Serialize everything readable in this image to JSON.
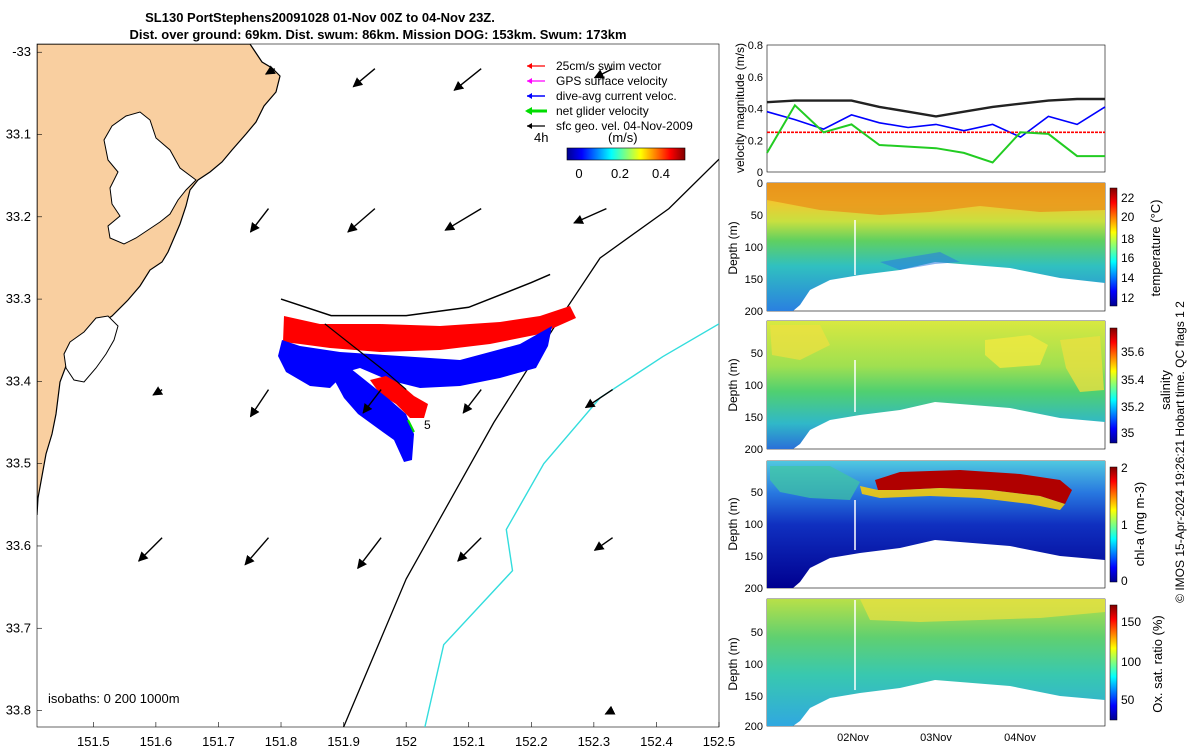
{
  "title": {
    "line1": "SL130 PortStephens20091028 01-Nov 00Z to 04-Nov 23Z.",
    "line2": "Dist. over ground: 69km. Dist. swum: 86km. Mission DOG: 153km. Swum: 173km"
  },
  "colors": {
    "land": "#f9cfa0",
    "swim_vector": "#ff0000",
    "gps_surface": "#ff00ff",
    "dive_avg": "#0000ff",
    "net_glider": "#00dd00",
    "sfc_geo": "#000000",
    "isobath_200": "#000000",
    "isobath_1000": "#33dddd"
  },
  "chart_data": [
    {
      "id": "map",
      "type": "map",
      "xticks": [
        "151.5",
        "151.6",
        "151.7",
        "151.8",
        "151.9",
        "152",
        "152.1",
        "152.2",
        "152.3",
        "152.4",
        "152.5"
      ],
      "yticks": [
        "-33",
        "33.1",
        "33.2",
        "33.3",
        "33.4",
        "33.5",
        "33.6",
        "33.7",
        "33.8"
      ],
      "xlim": [
        151.41,
        152.5
      ],
      "ylim": [
        -33.82,
        -32.99
      ],
      "legend": [
        {
          "label": "25cm/s swim vector",
          "color": "#ff0000"
        },
        {
          "label": "GPS surface velocity",
          "color": "#ff00ff"
        },
        {
          "label": "dive-avg current veloc.",
          "color": "#0000ff"
        },
        {
          "label": "net glider velocity",
          "color": "#00dd00"
        },
        {
          "label": "sfc geo. vel. 04-Nov-2009",
          "color": "#000000"
        }
      ],
      "time_label": "4h",
      "colorbar": {
        "label": "(m/s)",
        "ticks": [
          "0",
          "0.2",
          "0.4"
        ],
        "range": [
          0,
          0.5
        ]
      },
      "isobaths_text": "isobaths: 0   200  1000m",
      "end_label": "5",
      "geo_velocity_arrows": [
        {
          "lon": 151.79,
          "lat": -33.02,
          "u": -0.05,
          "v": -0.03
        },
        {
          "lon": 151.95,
          "lat": -33.02,
          "u": -0.12,
          "v": -0.1
        },
        {
          "lon": 152.12,
          "lat": -33.02,
          "u": -0.15,
          "v": -0.12
        },
        {
          "lon": 152.33,
          "lat": -33.02,
          "u": -0.1,
          "v": -0.05
        },
        {
          "lon": 151.78,
          "lat": -33.19,
          "u": -0.1,
          "v": -0.13
        },
        {
          "lon": 151.95,
          "lat": -33.19,
          "u": -0.15,
          "v": -0.13
        },
        {
          "lon": 152.12,
          "lat": -33.19,
          "u": -0.2,
          "v": -0.12
        },
        {
          "lon": 152.32,
          "lat": -33.19,
          "u": -0.18,
          "v": -0.08
        },
        {
          "lon": 151.61,
          "lat": -33.41,
          "u": -0.05,
          "v": -0.03
        },
        {
          "lon": 151.78,
          "lat": -33.41,
          "u": -0.1,
          "v": -0.15
        },
        {
          "lon": 151.96,
          "lat": -33.41,
          "u": -0.1,
          "v": -0.13
        },
        {
          "lon": 152.12,
          "lat": -33.41,
          "u": -0.1,
          "v": -0.13
        },
        {
          "lon": 152.33,
          "lat": -33.41,
          "u": -0.15,
          "v": -0.1
        },
        {
          "lon": 151.61,
          "lat": -33.59,
          "u": -0.13,
          "v": -0.13
        },
        {
          "lon": 151.78,
          "lat": -33.59,
          "u": -0.13,
          "v": -0.15
        },
        {
          "lon": 151.96,
          "lat": -33.59,
          "u": -0.13,
          "v": -0.17
        },
        {
          "lon": 152.12,
          "lat": -33.59,
          "u": -0.13,
          "v": -0.13
        },
        {
          "lon": 152.33,
          "lat": -33.59,
          "u": -0.1,
          "v": -0.07
        },
        {
          "lon": 152.33,
          "lat": -33.8,
          "u": -0.04,
          "v": -0.02
        }
      ],
      "glider_track": [
        {
          "lon": 151.8,
          "lat": -33.3
        },
        {
          "lon": 151.88,
          "lat": -33.32
        },
        {
          "lon": 152.0,
          "lat": -33.32
        },
        {
          "lon": 152.1,
          "lat": -33.31
        },
        {
          "lon": 152.2,
          "lat": -33.28
        },
        {
          "lon": 152.23,
          "lat": -33.27
        }
      ],
      "glider_track_south": [
        {
          "lon": 151.87,
          "lat": -33.33
        },
        {
          "lon": 151.92,
          "lat": -33.36
        },
        {
          "lon": 151.97,
          "lat": -33.39
        },
        {
          "lon": 152.0,
          "lat": -33.41
        }
      ],
      "isobath_200m": [
        {
          "lon": 152.5,
          "lat": -33.13
        },
        {
          "lon": 152.42,
          "lat": -33.19
        },
        {
          "lon": 152.31,
          "lat": -33.25
        },
        {
          "lon": 152.24,
          "lat": -33.33
        },
        {
          "lon": 152.14,
          "lat": -33.45
        },
        {
          "lon": 152.0,
          "lat": -33.64
        },
        {
          "lon": 151.9,
          "lat": -33.82
        }
      ],
      "isobath_1000m": [
        {
          "lon": 152.5,
          "lat": -33.33
        },
        {
          "lon": 152.41,
          "lat": -33.37
        },
        {
          "lon": 152.31,
          "lat": -33.42
        },
        {
          "lon": 152.22,
          "lat": -33.5
        },
        {
          "lon": 152.16,
          "lat": -33.58
        },
        {
          "lon": 152.17,
          "lat": -33.63
        },
        {
          "lon": 152.06,
          "lat": -33.72
        },
        {
          "lon": 152.03,
          "lat": -33.82
        }
      ]
    },
    {
      "id": "velocity",
      "type": "line",
      "ylabel": "velocity magnitude (m/s)",
      "yticks": [
        "0",
        "0.2",
        "0.4",
        "0.6",
        "0.8"
      ],
      "ylim": [
        0,
        0.8
      ],
      "x": [
        0,
        0.33,
        0.67,
        1,
        1.33,
        1.67,
        2,
        2.33,
        2.67,
        3,
        3.33,
        3.67,
        4
      ],
      "series": [
        {
          "color": "#222222",
          "values": [
            0.44,
            0.45,
            0.45,
            0.45,
            0.41,
            0.38,
            0.35,
            0.38,
            0.41,
            0.43,
            0.45,
            0.46,
            0.46
          ]
        },
        {
          "color": "#0000ff",
          "values": [
            0.38,
            0.33,
            0.27,
            0.36,
            0.31,
            0.28,
            0.3,
            0.26,
            0.3,
            0.22,
            0.35,
            0.3,
            0.41
          ]
        },
        {
          "color": "#ff0000",
          "values": [
            0.25,
            0.25,
            0.25,
            0.25,
            0.25,
            0.25,
            0.25,
            0.25,
            0.25,
            0.25,
            0.25,
            0.25,
            0.25
          ]
        },
        {
          "color": "#22cc22",
          "values": [
            0.12,
            0.42,
            0.25,
            0.3,
            0.17,
            0.16,
            0.15,
            0.12,
            0.06,
            0.25,
            0.24,
            0.1,
            0.1
          ]
        }
      ]
    },
    {
      "id": "temperature",
      "type": "heatmap",
      "colorbar_label": "temperature (°C)",
      "colorbar_ticks": [
        "22",
        "20",
        "18",
        "16",
        "14",
        "12"
      ],
      "colorbar_range": [
        11,
        23
      ],
      "ylabel": "Depth (m)",
      "yticks": [
        "0",
        "50",
        "100",
        "150",
        "200"
      ],
      "ylim": [
        0,
        200
      ]
    },
    {
      "id": "salinity",
      "type": "heatmap",
      "colorbar_label": "salinity",
      "colorbar_ticks": [
        "35.6",
        "35.4",
        "35.2",
        "35"
      ],
      "colorbar_range": [
        34.9,
        35.75
      ],
      "ylabel": "Depth (m)",
      "yticks": [
        "50",
        "100",
        "150",
        "200"
      ],
      "ylim": [
        0,
        200
      ]
    },
    {
      "id": "chla",
      "type": "heatmap",
      "colorbar_label": "chl-a (mg m-3)",
      "colorbar_ticks": [
        "2",
        "1",
        "0"
      ],
      "colorbar_range": [
        0,
        2
      ],
      "ylabel": "Depth (m)",
      "yticks": [
        "50",
        "100",
        "150",
        "200"
      ],
      "ylim": [
        0,
        200
      ]
    },
    {
      "id": "oxygen",
      "type": "heatmap",
      "colorbar_label": "Ox. sat. ratio (%)",
      "colorbar_ticks": [
        "150",
        "100",
        "50"
      ],
      "colorbar_range": [
        20,
        175
      ],
      "ylabel": "Depth (m)",
      "yticks": [
        "50",
        "100",
        "150",
        "200"
      ],
      "ylim": [
        0,
        200
      ],
      "xticks": [
        "02Nov",
        "03Nov",
        "04Nov"
      ]
    }
  ],
  "side_note": "© IMOS 15-Apr-2024 19:26:21 Hobart time. QC flags 1  2"
}
